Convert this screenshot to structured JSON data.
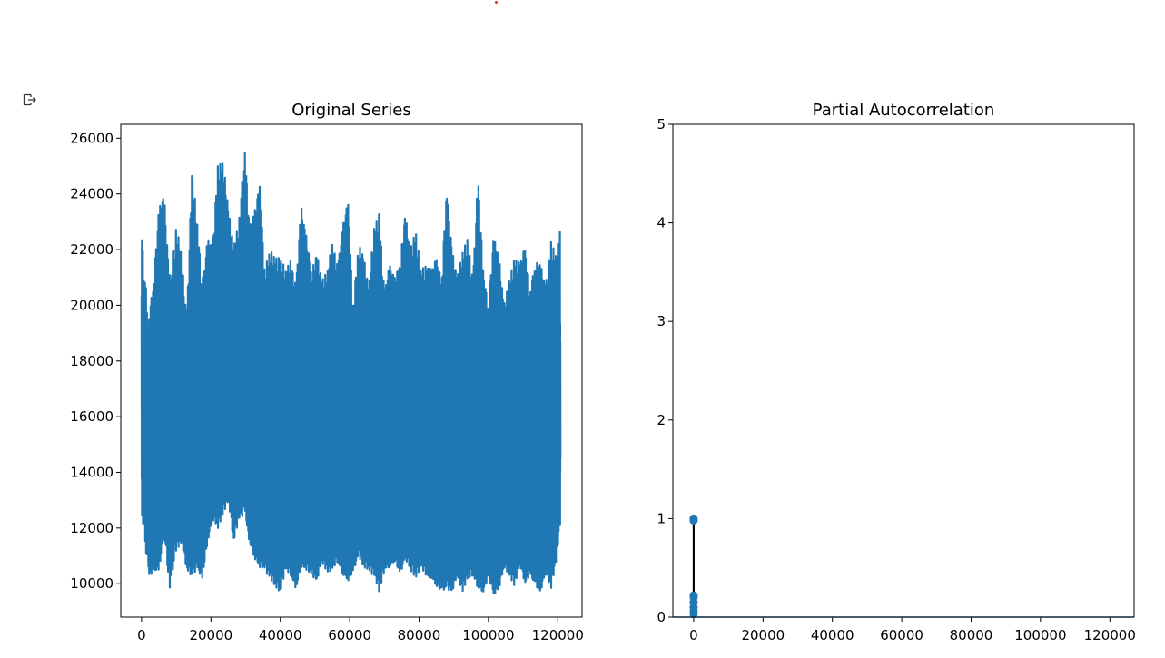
{
  "chart_data": [
    {
      "type": "line",
      "title": "Original Series",
      "xlabel": "",
      "ylabel": "",
      "xlim": [
        -6000,
        127000
      ],
      "ylim": [
        8800,
        26500
      ],
      "xticks": [
        0,
        20000,
        40000,
        60000,
        80000,
        100000,
        120000
      ],
      "yticks": [
        10000,
        12000,
        14000,
        16000,
        18000,
        20000,
        22000,
        24000,
        26000
      ],
      "color": "#1f77b4",
      "series": [
        {
          "x": [
            0,
            2000,
            3500,
            5000,
            6500,
            8000,
            10000,
            11500,
            13000,
            14500,
            16000,
            17500,
            19000,
            20500,
            22000,
            23500,
            25000,
            26500,
            28000,
            29800,
            31000,
            32500,
            34000,
            35500,
            37000,
            38500,
            40000,
            41500,
            43000,
            44500,
            46000,
            47500,
            49000,
            50500,
            52000,
            53500,
            55000,
            56500,
            58000,
            59500,
            61000,
            62500,
            64000,
            65500,
            67000,
            68500,
            70000,
            71500,
            73000,
            74500,
            76000,
            77500,
            79000,
            80500,
            82000,
            83500,
            85000,
            86500,
            88000,
            89500,
            91000,
            92500,
            94000,
            95500,
            97000,
            98500,
            100000,
            101500,
            103000,
            104500,
            106000,
            107500,
            109000,
            110500,
            112000,
            113500,
            115000,
            116500,
            118000,
            119500,
            120800
          ],
          "high": [
            22600,
            19500,
            21000,
            23500,
            24000,
            21000,
            22900,
            21800,
            19500,
            24800,
            23200,
            20600,
            22400,
            22200,
            25000,
            25200,
            23500,
            22100,
            23000,
            25700,
            22900,
            23300,
            24400,
            21300,
            22000,
            21700,
            21700,
            21300,
            21600,
            20700,
            23600,
            22500,
            21200,
            21900,
            20900,
            21200,
            22300,
            21400,
            22900,
            23800,
            20000,
            22200,
            21800,
            20600,
            22800,
            23300,
            20500,
            21500,
            21000,
            21600,
            23300,
            22000,
            22700,
            21300,
            21400,
            21300,
            21700,
            21000,
            24400,
            22000,
            21000,
            21900,
            22400,
            20900,
            24700,
            21300,
            20000,
            22500,
            21800,
            20000,
            20900,
            21700,
            21500,
            22100,
            20600,
            21600,
            21500,
            20700,
            22300,
            21800,
            22800
          ],
          "low": [
            12500,
            10300,
            10400,
            10500,
            11800,
            9800,
            11200,
            11500,
            10500,
            10300,
            10500,
            10200,
            11500,
            12300,
            12000,
            12500,
            13000,
            11500,
            12300,
            12500,
            11500,
            10900,
            10600,
            10500,
            10200,
            9900,
            9700,
            10500,
            10300,
            9800,
            10600,
            10500,
            10300,
            10100,
            10800,
            10400,
            10500,
            10800,
            10300,
            10100,
            10400,
            11000,
            10600,
            10500,
            10300,
            9700,
            10500,
            10600,
            10800,
            10300,
            10900,
            10500,
            10200,
            10600,
            10300,
            10200,
            9900,
            9700,
            9800,
            9700,
            10300,
            9700,
            10200,
            10300,
            9800,
            9700,
            10200,
            9600,
            9800,
            10600,
            10300,
            9900,
            10700,
            10000,
            10300,
            9900,
            9700,
            10400,
            9800,
            10800,
            12300
          ]
        }
      ]
    },
    {
      "type": "stem",
      "title": "Partial Autocorrelation",
      "xlabel": "",
      "ylabel": "",
      "xlim": [
        -6000,
        127000
      ],
      "ylim": [
        0,
        5
      ],
      "xticks": [
        0,
        20000,
        40000,
        60000,
        80000,
        100000,
        120000
      ],
      "yticks": [
        0,
        1,
        2,
        3,
        4,
        5
      ],
      "color": "#1f77b4",
      "stem_color": "#000000",
      "points": [
        {
          "x": 0,
          "y": 1.0
        },
        {
          "x": 1,
          "y": 0.98
        },
        {
          "x": 2,
          "y": 0.22
        },
        {
          "x": 3,
          "y": 0.2
        },
        {
          "x": 4,
          "y": 0.15
        },
        {
          "x": 5,
          "y": 0.1
        },
        {
          "x": 6,
          "y": 0.06
        },
        {
          "x": 7,
          "y": 0.03
        }
      ]
    }
  ]
}
